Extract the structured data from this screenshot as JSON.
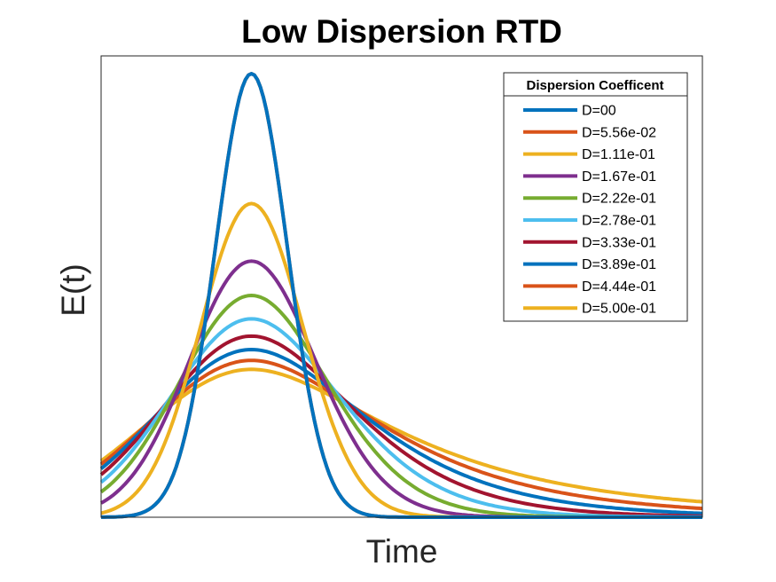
{
  "chart_data": {
    "type": "line",
    "title": "Low Dispersion RTD",
    "xlabel": "Time",
    "ylabel": "E(t)",
    "xtick_labels_shown": false,
    "ytick_labels_shown": false,
    "grid": false,
    "legend": {
      "title": "Dispersion Coefficent",
      "placement": "top-right"
    },
    "series": [
      {
        "name": "D=00",
        "color": "#0072BD"
      },
      {
        "name": "D=5.56e-02",
        "color": "#D95319"
      },
      {
        "name": "D=1.11e-01",
        "color": "#EDB120"
      },
      {
        "name": "D=1.67e-01",
        "color": "#7E2F8E"
      },
      {
        "name": "D=2.22e-01",
        "color": "#77AC30"
      },
      {
        "name": "D=2.78e-01",
        "color": "#4DBEEE"
      },
      {
        "name": "D=3.33e-01",
        "color": "#A2142F"
      },
      {
        "name": "D=3.89e-01",
        "color": "#0072BD"
      },
      {
        "name": "D=4.44e-01",
        "color": "#D95319"
      },
      {
        "name": "D=5.00e-01",
        "color": "#EDB120"
      }
    ]
  }
}
